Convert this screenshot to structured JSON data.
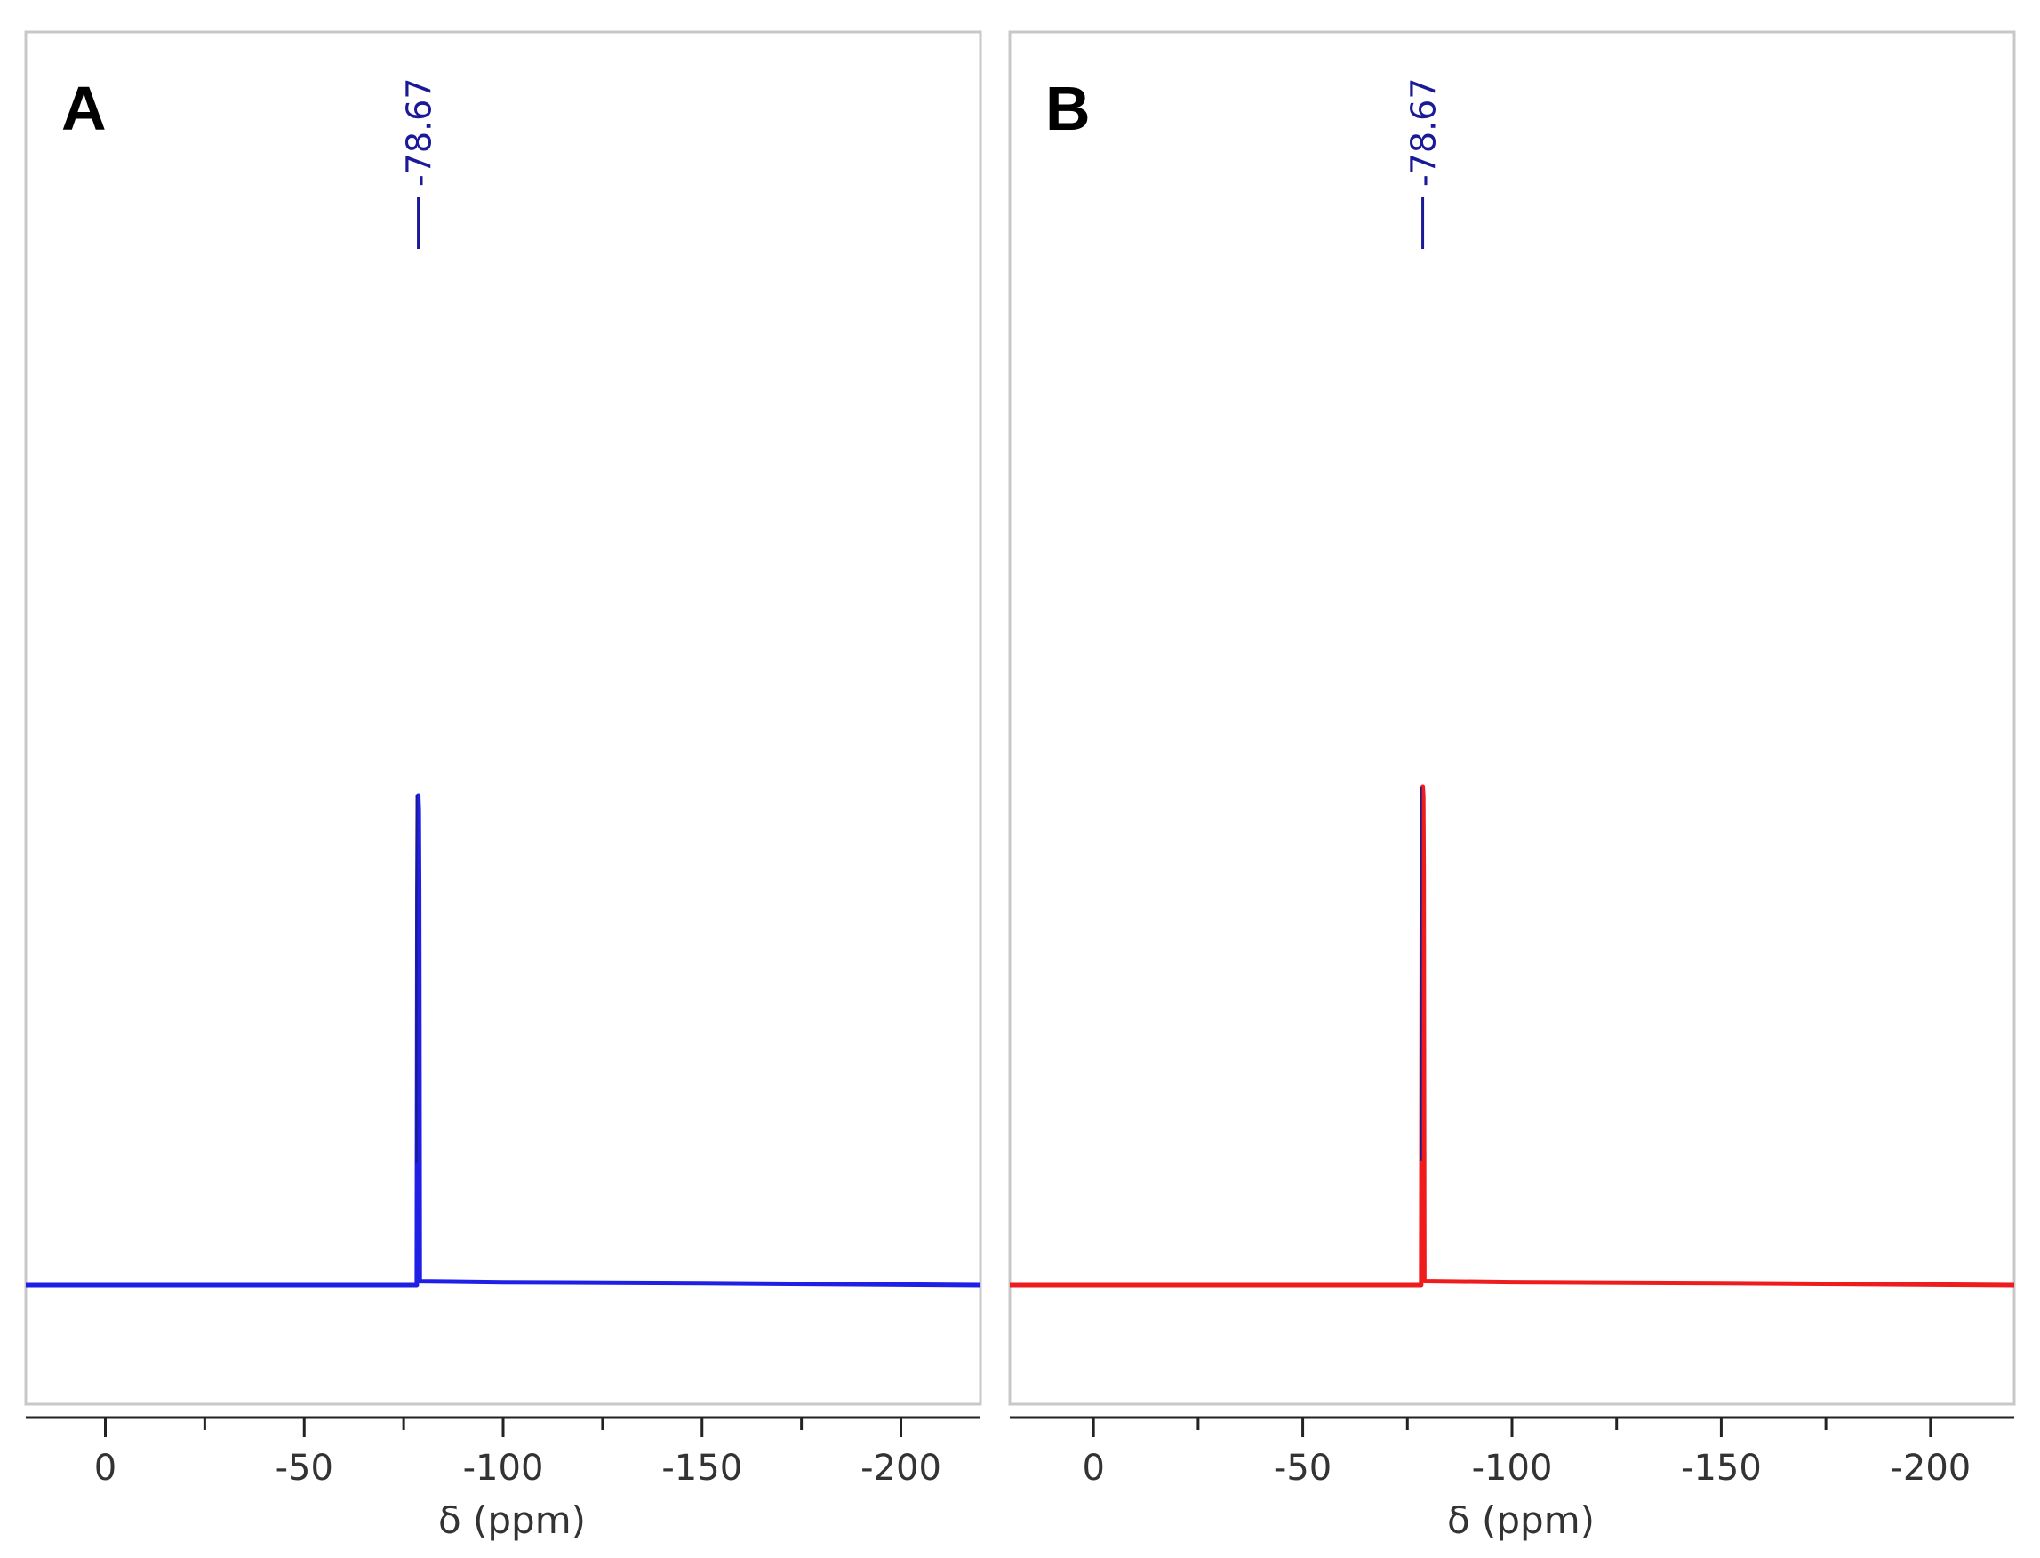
{
  "chart_data": [
    {
      "type": "line",
      "panel_label": "A",
      "xlabel": "δ (ppm)",
      "xlim": [
        20,
        -220
      ],
      "x_ticks": [
        0,
        -50,
        -100,
        -150,
        -200
      ],
      "x_tick_labels": [
        "0",
        "-50",
        "-100",
        "-150",
        "-200"
      ],
      "peak_labels": [
        {
          "x": -78.67,
          "text": "-78.67"
        }
      ],
      "series": [
        {
          "color": "#1f1fe6",
          "x": [
            20,
            -78.3,
            -78.45,
            -78.55,
            -78.67,
            -78.8,
            -78.9,
            -79.05,
            -100,
            -150,
            -220
          ],
          "y": [
            0,
            0,
            0.8,
            0.97,
            1.0,
            0.97,
            0.8,
            0.008,
            0.006,
            0.004,
            0
          ]
        }
      ],
      "grid": false
    },
    {
      "type": "line",
      "panel_label": "B",
      "xlabel": "δ (ppm)",
      "xlim": [
        20,
        -220
      ],
      "x_ticks": [
        0,
        -50,
        -100,
        -150,
        -200
      ],
      "x_tick_labels": [
        "0",
        "-50",
        "-100",
        "-150",
        "-200"
      ],
      "peak_labels": [
        {
          "x": -78.67,
          "text": "-78.67"
        }
      ],
      "series": [
        {
          "color": "#ee1c1c",
          "x": [
            20,
            -78.3,
            -78.45,
            -78.55,
            -78.67,
            -78.8,
            -78.9,
            -79.05,
            -100,
            -150,
            -220
          ],
          "y": [
            0,
            0,
            0.82,
            0.98,
            1.0,
            0.98,
            0.82,
            0.008,
            0.006,
            0.004,
            0
          ]
        }
      ],
      "grid": false
    }
  ]
}
